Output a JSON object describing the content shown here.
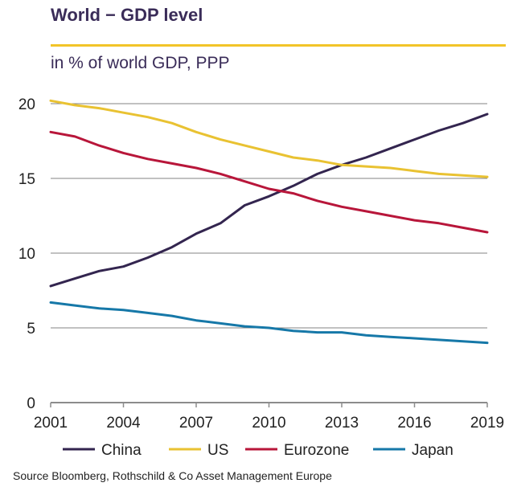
{
  "header": {
    "title": "World − GDP level",
    "subtitle": "in % of world GDP, PPP"
  },
  "footer": {
    "source": "Source Bloomberg, Rothschild & Co Asset Management Europe"
  },
  "chart_data": {
    "type": "line",
    "title": "World − GDP level",
    "subtitle": "in % of world GDP, PPP",
    "xlabel": "",
    "ylabel": "",
    "x": [
      2001,
      2002,
      2003,
      2004,
      2005,
      2006,
      2007,
      2008,
      2009,
      2010,
      2011,
      2012,
      2013,
      2014,
      2015,
      2016,
      2017,
      2018,
      2019
    ],
    "xticks": [
      2001,
      2004,
      2007,
      2010,
      2013,
      2016,
      2019
    ],
    "yticks": [
      0,
      5,
      10,
      15,
      20
    ],
    "xlim": [
      2001,
      2019
    ],
    "ylim": [
      0,
      20
    ],
    "grid": true,
    "legend_position": "bottom",
    "series": [
      {
        "name": "China",
        "color": "#33254f",
        "values": [
          7.8,
          8.3,
          8.8,
          9.1,
          9.7,
          10.4,
          11.3,
          12.0,
          13.2,
          13.8,
          14.5,
          15.3,
          15.9,
          16.4,
          17.0,
          17.6,
          18.2,
          18.7,
          19.3
        ]
      },
      {
        "name": "US",
        "color": "#e9c232",
        "values": [
          20.2,
          19.9,
          19.7,
          19.4,
          19.1,
          18.7,
          18.1,
          17.6,
          17.2,
          16.8,
          16.4,
          16.2,
          15.9,
          15.8,
          15.7,
          15.5,
          15.3,
          15.2,
          15.1
        ]
      },
      {
        "name": "Eurozone",
        "color": "#b8163a",
        "values": [
          18.1,
          17.8,
          17.2,
          16.7,
          16.3,
          16.0,
          15.7,
          15.3,
          14.8,
          14.3,
          14.0,
          13.5,
          13.1,
          12.8,
          12.5,
          12.2,
          12.0,
          11.7,
          11.4
        ]
      },
      {
        "name": "Japan",
        "color": "#1678a8",
        "values": [
          6.7,
          6.5,
          6.3,
          6.2,
          6.0,
          5.8,
          5.5,
          5.3,
          5.1,
          5.0,
          4.8,
          4.7,
          4.7,
          4.5,
          4.4,
          4.3,
          4.2,
          4.1,
          4.0
        ]
      }
    ]
  }
}
